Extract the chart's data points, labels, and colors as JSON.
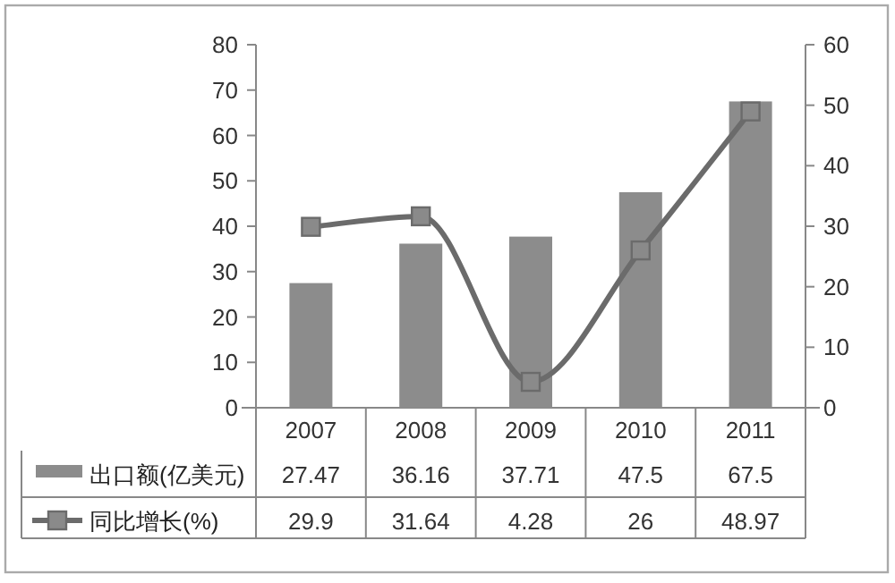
{
  "chart_data": {
    "type": "bar",
    "categories": [
      "2007",
      "2008",
      "2009",
      "2010",
      "2011"
    ],
    "series": [
      {
        "name": "出口额(亿美元)",
        "color": "#8c8c8c",
        "values": [
          27.47,
          36.16,
          37.71,
          47.5,
          67.5
        ]
      },
      {
        "name": "同比增长(%)",
        "type": "line",
        "axis": "y2",
        "marker": "square",
        "color": "#6b6b6b",
        "values": [
          29.9,
          31.64,
          4.28,
          26,
          48.97
        ]
      }
    ],
    "ylim": [
      0,
      80
    ],
    "yticks": [
      0,
      10,
      20,
      30,
      40,
      50,
      60,
      70,
      80
    ],
    "y2lim": [
      0,
      60
    ],
    "y2ticks": [
      0,
      10,
      20,
      30,
      40,
      50,
      60
    ],
    "data_labels": true,
    "legend": "bottom"
  }
}
